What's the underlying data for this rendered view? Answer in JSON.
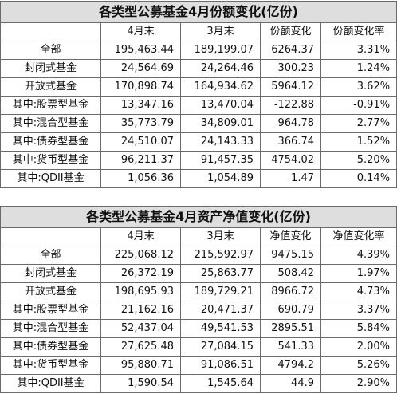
{
  "table1": {
    "title": "各类型公募基金4月份额变化(亿份)",
    "headers": [
      "",
      "4月末",
      "3月末",
      "份额变化",
      "份额变化率"
    ],
    "rows": [
      [
        "全部",
        "195,463.44",
        "189,199.07",
        "6264.37",
        "3.31%"
      ],
      [
        "封闭式基金",
        "24,564.69",
        "24,264.46",
        "300.23",
        "1.24%"
      ],
      [
        "开放式基金",
        "170,898.74",
        "164,934.62",
        "5964.12",
        "3.62%"
      ],
      [
        "其中:股票型基金",
        "13,347.16",
        "13,470.04",
        "-122.88",
        "-0.91%"
      ],
      [
        "其中:混合型基金",
        "35,773.79",
        "34,809.01",
        "964.78",
        "2.77%"
      ],
      [
        "其中:债券型基金",
        "24,510.07",
        "24,143.33",
        "366.74",
        "1.52%"
      ],
      [
        "其中:货币型基金",
        "96,211.37",
        "91,457.35",
        "4754.02",
        "5.20%"
      ],
      [
        "其中:QDII基金",
        "1,056.36",
        "1,054.89",
        "1.47",
        "0.14%"
      ]
    ]
  },
  "table2": {
    "title": "各类型公募基金4月资产净值变化(亿份)",
    "headers": [
      "",
      "4月末",
      "3月末",
      "净值变化",
      "净值变化率"
    ],
    "rows": [
      [
        "全部",
        "225,068.12",
        "215,592.97",
        "9475.15",
        "4.39%"
      ],
      [
        "封闭式基金",
        "26,372.19",
        "25,863.77",
        "508.42",
        "1.97%"
      ],
      [
        "开放式基金",
        "198,695.93",
        "189,729.21",
        "8966.72",
        "4.73%"
      ],
      [
        "其中:股票型基金",
        "21,162.16",
        "20,471.37",
        "690.79",
        "3.37%"
      ],
      [
        "其中:混合型基金",
        "52,437.04",
        "49,541.53",
        "2895.51",
        "5.84%"
      ],
      [
        "其中:债券型基金",
        "27,625.48",
        "27,084.15",
        "541.33",
        "2.00%"
      ],
      [
        "其中:货币型基金",
        "95,880.71",
        "91,086.51",
        "4794.2",
        "5.26%"
      ],
      [
        "其中:QDII基金",
        "1,590.54",
        "1,545.64",
        "44.9",
        "2.90%"
      ]
    ]
  }
}
